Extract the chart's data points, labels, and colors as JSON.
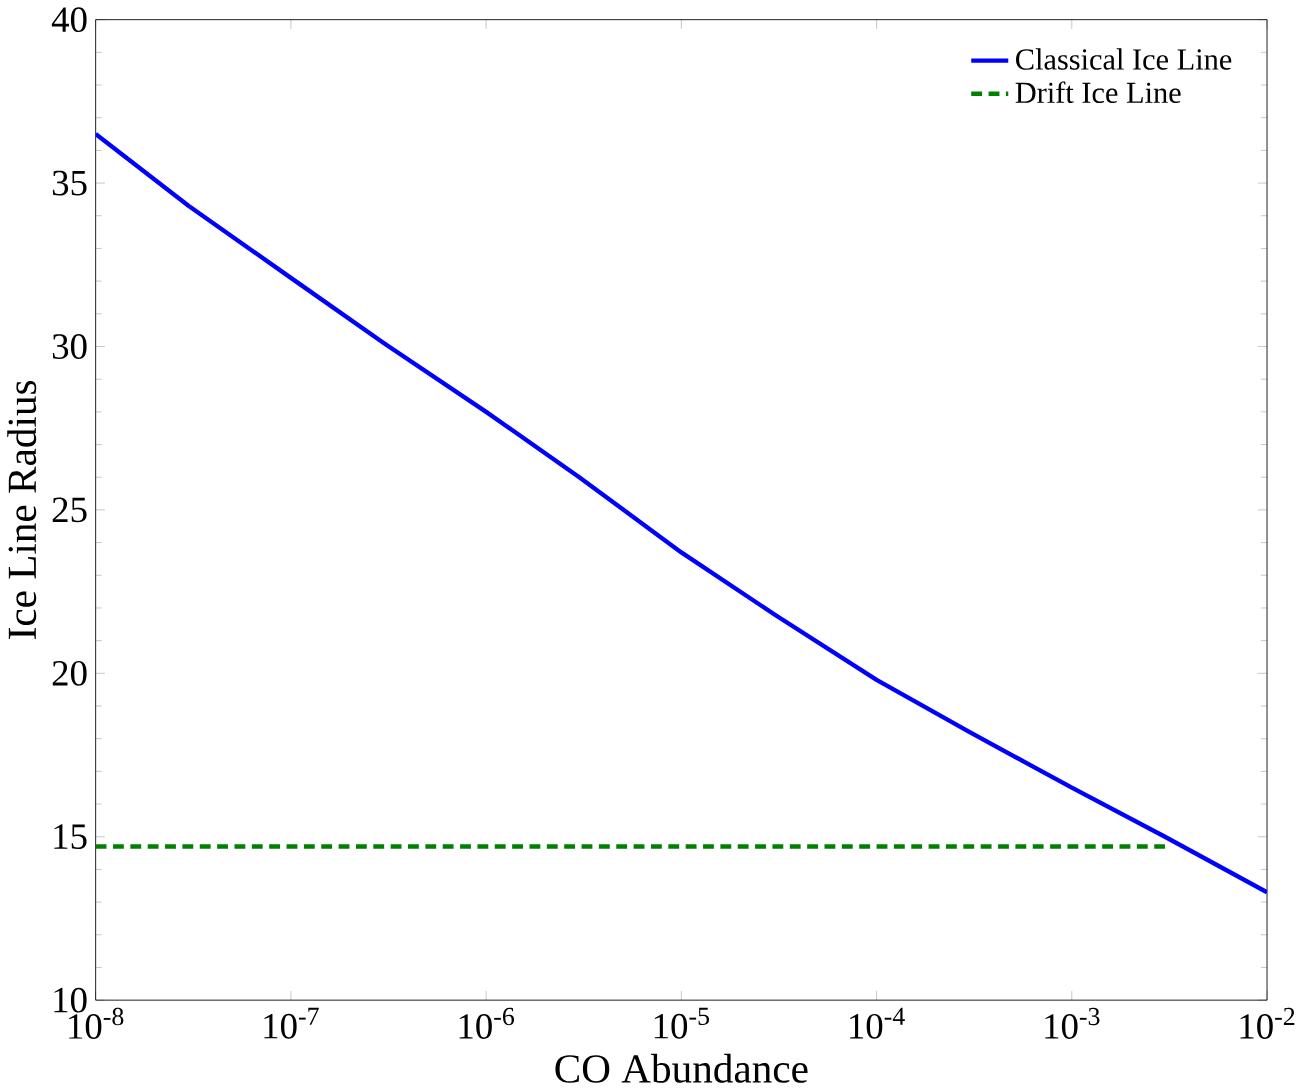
{
  "chart_data": {
    "type": "line",
    "xlabel": "CO Abundance",
    "ylabel": "Ice Line Radius",
    "log": "x",
    "xlim": [
      1e-08,
      0.01
    ],
    "ylim": [
      10,
      40
    ],
    "xticks": [
      {
        "value": 1e-08,
        "label": "10$^{-8}$"
      },
      {
        "value": 1e-07,
        "label": "10$^{-7}$"
      },
      {
        "value": 1e-06,
        "label": "10$^{-6}$"
      },
      {
        "value": 1e-05,
        "label": "10$^{-5}$"
      },
      {
        "value": 0.0001,
        "label": "10$^{-4}$"
      },
      {
        "value": 0.001,
        "label": "10$^{-3}$"
      },
      {
        "value": 0.01,
        "label": "10$^{-2}$"
      }
    ],
    "yticks": [
      10,
      15,
      20,
      25,
      30,
      35,
      40
    ],
    "legend": "top right",
    "grid": false,
    "series": [
      {
        "name": "Classical Ice Line",
        "color": "#0000ff",
        "line_style": "solid",
        "x": [
          1e-08,
          3e-08,
          1e-07,
          3e-07,
          1e-06,
          3e-06,
          1e-05,
          3e-05,
          0.0001,
          0.0003,
          0.001,
          0.003,
          0.01
        ],
        "values": [
          36.5,
          34.3,
          32.1,
          30.1,
          28.0,
          26.0,
          23.7,
          21.8,
          19.8,
          18.2,
          16.5,
          15.0,
          13.3
        ]
      },
      {
        "name": "Drift Ice Line",
        "color": "#008000",
        "line_style": "dashed",
        "x": [
          1e-08,
          0.003
        ],
        "values": [
          14.7,
          14.7
        ]
      }
    ]
  }
}
